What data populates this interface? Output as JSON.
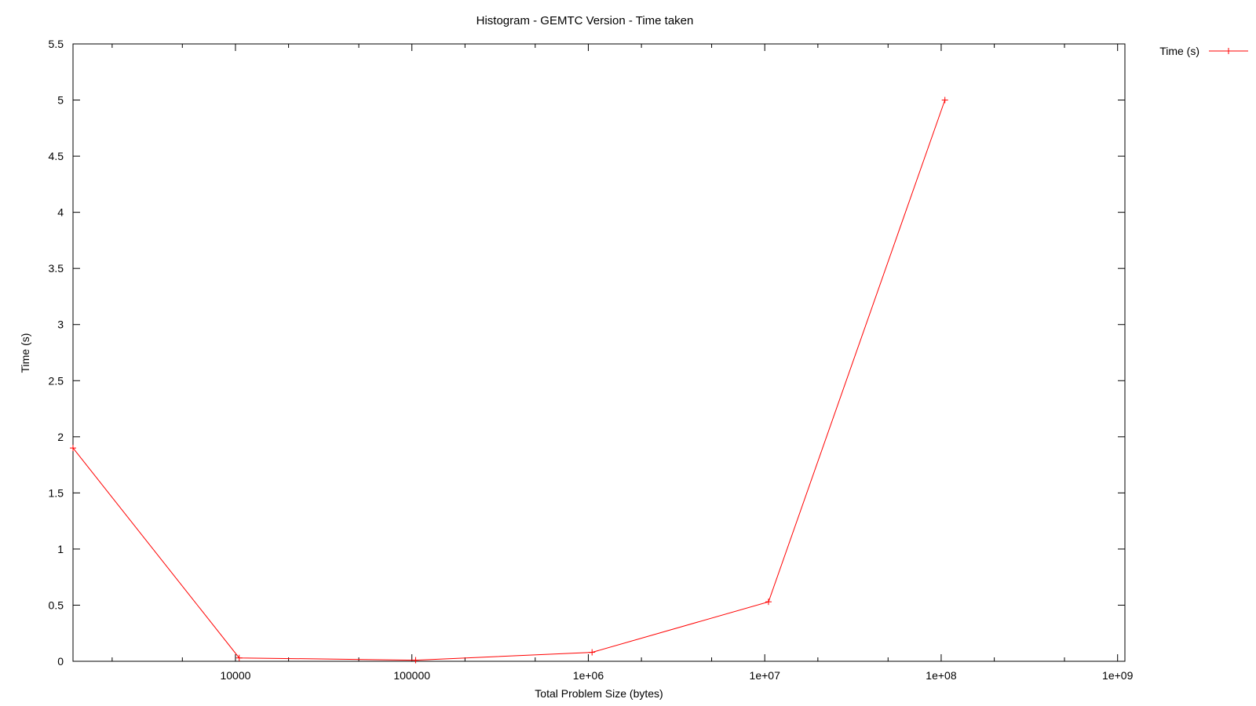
{
  "chart_data": {
    "type": "line",
    "title": "Histogram - GEMTC Version - Time taken",
    "xlabel": "Total Problem Size (bytes)",
    "ylabel": "Time (s)",
    "xscale": "log",
    "xlim": [
      1200,
      1100000000
    ],
    "ylim": [
      0,
      5.5
    ],
    "xticks": [
      {
        "value": 10000,
        "label": "10000"
      },
      {
        "value": 100000,
        "label": "100000"
      },
      {
        "value": 1000000,
        "label": "1e+06"
      },
      {
        "value": 10000000,
        "label": "1e+07"
      },
      {
        "value": 100000000,
        "label": "1e+08"
      },
      {
        "value": 1000000000,
        "label": "1e+09"
      }
    ],
    "yticks": [
      {
        "value": 0,
        "label": "0"
      },
      {
        "value": 0.5,
        "label": "0.5"
      },
      {
        "value": 1,
        "label": "1"
      },
      {
        "value": 1.5,
        "label": "1.5"
      },
      {
        "value": 2,
        "label": "2"
      },
      {
        "value": 2.5,
        "label": "2.5"
      },
      {
        "value": 3,
        "label": "3"
      },
      {
        "value": 3.5,
        "label": "3.5"
      },
      {
        "value": 4,
        "label": "4"
      },
      {
        "value": 4.5,
        "label": "4.5"
      },
      {
        "value": 5,
        "label": "5"
      },
      {
        "value": 5.5,
        "label": "5.5"
      }
    ],
    "grid": false,
    "legend_position": "top-right outside",
    "series": [
      {
        "name": "Time (s)",
        "color": "#ff0000",
        "marker": "plus",
        "x": [
          1200,
          10500,
          105000,
          1050000,
          10500000,
          105000000
        ],
        "y": [
          1.9,
          0.03,
          0.01,
          0.08,
          0.53,
          5.0
        ]
      }
    ]
  }
}
